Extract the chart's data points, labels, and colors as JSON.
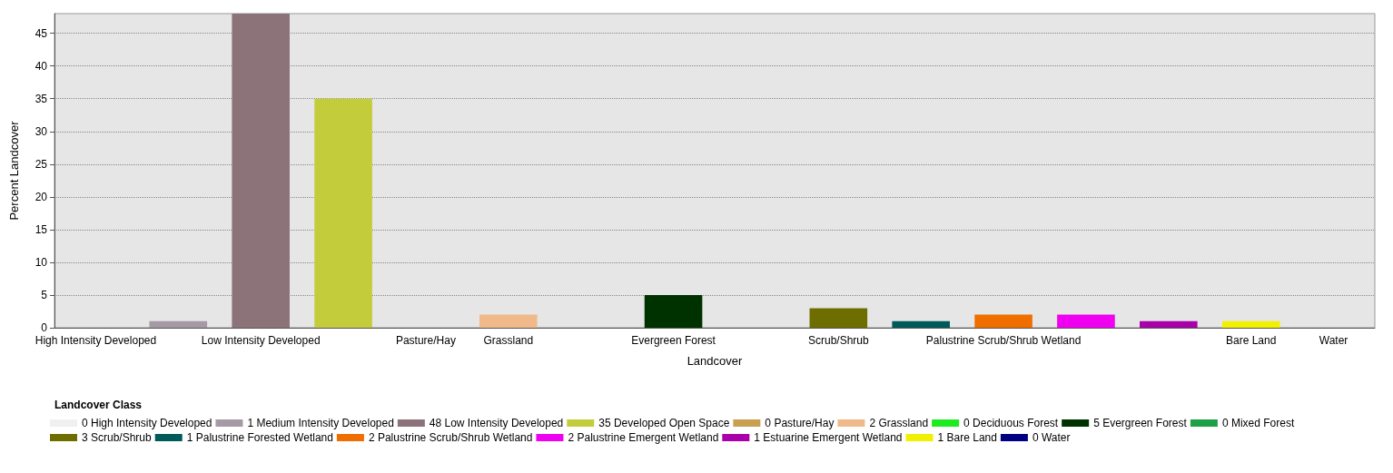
{
  "chart_data": {
    "type": "bar",
    "xlabel": "Landcover",
    "ylabel": "Percent Landcover",
    "legend_title": "Landcover Class",
    "legend": "bottom",
    "grid": "y",
    "stacked": true,
    "ylim": [
      0,
      48
    ],
    "yticks": [
      0,
      5,
      10,
      15,
      20,
      25,
      30,
      35,
      40,
      45
    ],
    "categories": [
      "High Intensity Developed",
      null,
      "Low Intensity Developed",
      null,
      "Pasture/Hay",
      "Grassland",
      null,
      "Evergreen Forest",
      null,
      "Scrub/Shrub",
      null,
      "Palustrine Scrub/Shrub Wetland",
      null,
      null,
      "Bare Land",
      "Water"
    ],
    "series": [
      {
        "name": "0 High Intensity Developed",
        "color": "#f0f0f0",
        "values": [
          0,
          null,
          null,
          null,
          null,
          null,
          null,
          null,
          null,
          null,
          null,
          null,
          null,
          null,
          null,
          null
        ]
      },
      {
        "name": "1 Medium Intensity Developed",
        "color": "#a599a5",
        "values": [
          null,
          1,
          null,
          null,
          null,
          null,
          null,
          null,
          null,
          null,
          null,
          null,
          null,
          null,
          null,
          null
        ]
      },
      {
        "name": "48 Low Intensity Developed",
        "color": "#8c737a",
        "values": [
          null,
          null,
          48,
          null,
          null,
          null,
          null,
          null,
          null,
          null,
          null,
          null,
          null,
          null,
          null,
          null
        ]
      },
      {
        "name": "35 Developed Open Space",
        "color": "#c3cd3c",
        "values": [
          null,
          null,
          null,
          35,
          null,
          null,
          null,
          null,
          null,
          null,
          null,
          null,
          null,
          null,
          null,
          null
        ]
      },
      {
        "name": "0 Pasture/Hay",
        "color": "#c8a050",
        "values": [
          null,
          null,
          null,
          null,
          0,
          null,
          null,
          null,
          null,
          null,
          null,
          null,
          null,
          null,
          null,
          null
        ]
      },
      {
        "name": "2 Grassland",
        "color": "#f0b98a",
        "values": [
          null,
          null,
          null,
          null,
          null,
          2,
          null,
          null,
          null,
          null,
          null,
          null,
          null,
          null,
          null,
          null
        ]
      },
      {
        "name": "0 Deciduous Forest",
        "color": "#1eeb1e",
        "values": [
          null,
          null,
          null,
          null,
          null,
          null,
          0,
          null,
          null,
          null,
          null,
          null,
          null,
          null,
          null,
          null
        ]
      },
      {
        "name": "5 Evergreen Forest",
        "color": "#003200",
        "values": [
          null,
          null,
          null,
          null,
          null,
          null,
          null,
          5,
          null,
          null,
          null,
          null,
          null,
          null,
          null,
          null
        ]
      },
      {
        "name": "0 Mixed Forest",
        "color": "#1ea046",
        "values": [
          null,
          null,
          null,
          null,
          null,
          null,
          null,
          null,
          0,
          null,
          null,
          null,
          null,
          null,
          null,
          null
        ]
      },
      {
        "name": "3 Scrub/Shrub",
        "color": "#6e6e00",
        "values": [
          null,
          null,
          null,
          null,
          null,
          null,
          null,
          null,
          null,
          3,
          null,
          null,
          null,
          null,
          null,
          null
        ]
      },
      {
        "name": "1 Palustrine Forested Wetland",
        "color": "#005a5a",
        "values": [
          null,
          null,
          null,
          null,
          null,
          null,
          null,
          null,
          null,
          null,
          1,
          null,
          null,
          null,
          null,
          null
        ]
      },
      {
        "name": "2 Palustrine Scrub/Shrub Wetland",
        "color": "#f06e00",
        "values": [
          null,
          null,
          null,
          null,
          null,
          null,
          null,
          null,
          null,
          null,
          null,
          2,
          null,
          null,
          null,
          null
        ]
      },
      {
        "name": "2 Palustrine Emergent Wetland",
        "color": "#f000f0",
        "values": [
          null,
          null,
          null,
          null,
          null,
          null,
          null,
          null,
          null,
          null,
          null,
          null,
          2,
          null,
          null,
          null
        ]
      },
      {
        "name": "1 Estuarine Emergent Wetland",
        "color": "#aa00aa",
        "values": [
          null,
          null,
          null,
          null,
          null,
          null,
          null,
          null,
          null,
          null,
          null,
          null,
          null,
          1,
          null,
          null
        ]
      },
      {
        "name": "1 Bare Land",
        "color": "#f0f000",
        "values": [
          null,
          null,
          null,
          null,
          null,
          null,
          null,
          null,
          null,
          null,
          null,
          null,
          null,
          null,
          1,
          null
        ]
      },
      {
        "name": "0 Water",
        "color": "#000080",
        "values": [
          null,
          null,
          null,
          null,
          null,
          null,
          null,
          null,
          null,
          null,
          null,
          null,
          null,
          null,
          null,
          0
        ]
      }
    ]
  }
}
